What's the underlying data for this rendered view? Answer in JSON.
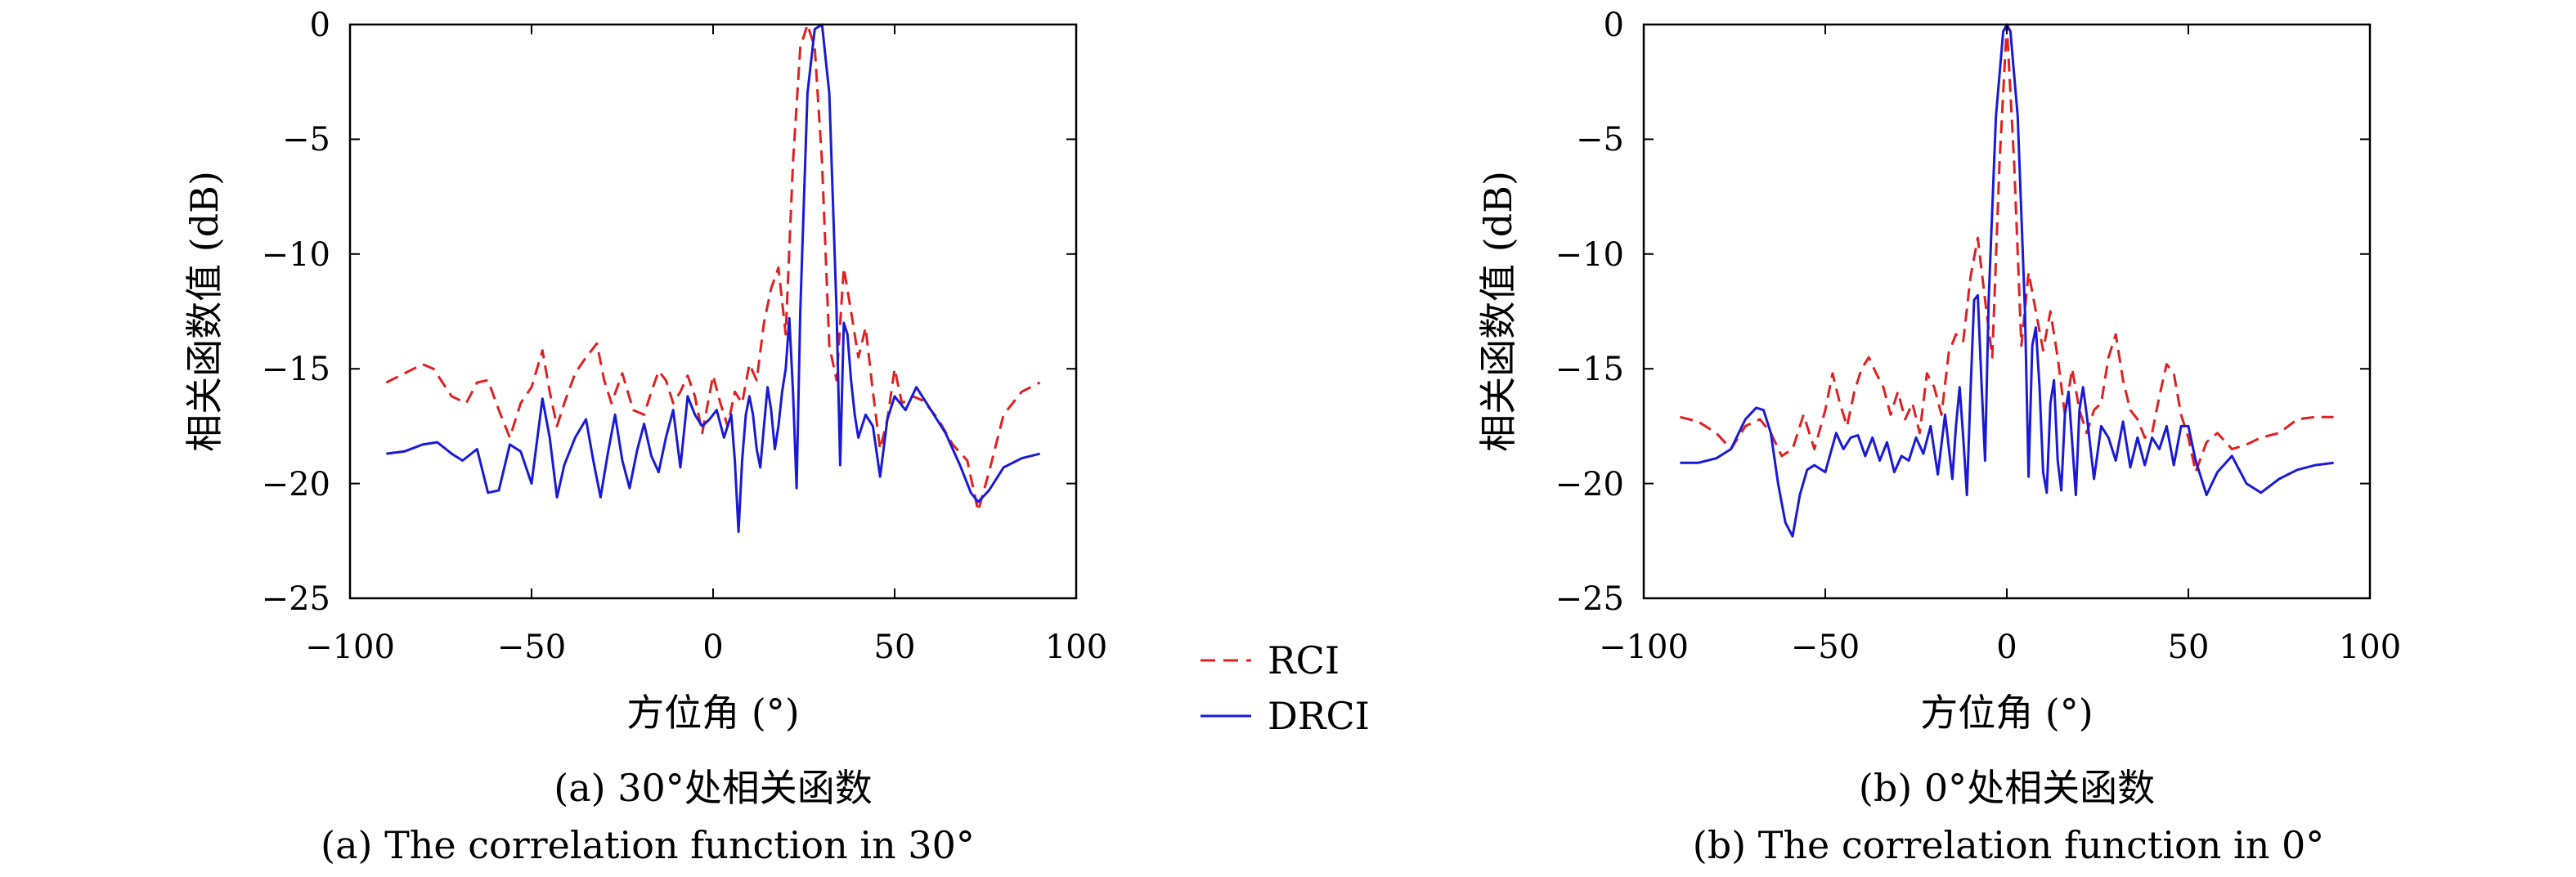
{
  "legend": {
    "items": [
      {
        "name": "RCI",
        "color": "#e02020",
        "dash": "dashed"
      },
      {
        "name": "DRCI",
        "color": "#1a1ad6",
        "dash": "solid"
      }
    ]
  },
  "chart_data": [
    {
      "type": "line",
      "xlabel": "方位角 (°)",
      "ylabel": "相关函数值 (dB)",
      "xlim": [
        -100,
        100
      ],
      "ylim": [
        -25,
        0
      ],
      "xticks": [
        -100,
        -50,
        0,
        50,
        100
      ],
      "yticks": [
        0,
        -5,
        -10,
        -15,
        -20,
        -25
      ],
      "xtick_labels": [
        "−100",
        "−50",
        "0",
        "50",
        "100"
      ],
      "ytick_labels": [
        "0",
        "−5",
        "−10",
        "−15",
        "−20",
        "−25"
      ],
      "caption_cn": "(a) 30°处相关函数",
      "caption_en": "(a) The correlation function in 30°",
      "grid": false,
      "series": [
        {
          "name": "RCI",
          "color": "#e02020",
          "dash": "dashed",
          "x": [
            -90,
            -85,
            -80,
            -77,
            -72,
            -68,
            -65,
            -62,
            -59,
            -56,
            -53,
            -50,
            -47,
            -45,
            -43,
            -41,
            -38,
            -35,
            -32,
            -30,
            -28,
            -25,
            -22,
            -19,
            -17,
            -15,
            -13,
            -11,
            -9,
            -7,
            -5,
            -3,
            0,
            2,
            4,
            6,
            8,
            10,
            12,
            14,
            16,
            18,
            20,
            22,
            24,
            26,
            28,
            30,
            32,
            34,
            36,
            38,
            40,
            42,
            44,
            46,
            48,
            50,
            52,
            55,
            58,
            62,
            66,
            70,
            73,
            76,
            80,
            85,
            90
          ],
          "y": [
            -15.6,
            -15.2,
            -14.8,
            -15.0,
            -16.2,
            -16.5,
            -15.6,
            -15.5,
            -16.8,
            -18.0,
            -16.5,
            -15.8,
            -14.2,
            -16.0,
            -17.5,
            -16.5,
            -15.2,
            -14.5,
            -13.9,
            -15.5,
            -16.5,
            -15.2,
            -16.8,
            -17.0,
            -16.0,
            -15.1,
            -15.5,
            -16.5,
            -16.0,
            -15.3,
            -16.2,
            -17.8,
            -15.3,
            -16.5,
            -17.5,
            -16.0,
            -16.5,
            -14.8,
            -15.5,
            -13.0,
            -11.5,
            -10.6,
            -13.5,
            -6,
            -1,
            0,
            -1,
            -6,
            -14.0,
            -15.5,
            -10.6,
            -12.5,
            -14.5,
            -13.2,
            -16.0,
            -18.5,
            -17.2,
            -15.0,
            -16.5,
            -16.2,
            -16.4,
            -17.2,
            -18.3,
            -19.0,
            -21.2,
            -19.5,
            -17.0,
            -16.0,
            -15.6
          ]
        },
        {
          "name": "DRCI",
          "color": "#1a1ad6",
          "dash": "solid",
          "x": [
            -90,
            -85,
            -80,
            -76,
            -72,
            -69,
            -65,
            -62,
            -59,
            -56,
            -53,
            -50,
            -47,
            -45,
            -43,
            -41,
            -38,
            -35,
            -33,
            -31,
            -29,
            -27,
            -25,
            -23,
            -21,
            -19,
            -17,
            -15,
            -13,
            -11,
            -9,
            -7,
            -5,
            -3,
            -1,
            1,
            3,
            5,
            6,
            7,
            8,
            9,
            10,
            11,
            12,
            13,
            14,
            15,
            16,
            17,
            18,
            19,
            20,
            21,
            22,
            23,
            24,
            26,
            28,
            30,
            32,
            34,
            35,
            36,
            37,
            38,
            39,
            40,
            42,
            44,
            46,
            48,
            50,
            53,
            56,
            60,
            64,
            68,
            71,
            73,
            76,
            80,
            85,
            90
          ],
          "y": [
            -18.7,
            -18.6,
            -18.3,
            -18.2,
            -18.7,
            -19.0,
            -18.5,
            -20.4,
            -20.3,
            -18.3,
            -18.6,
            -20.0,
            -16.3,
            -18.0,
            -20.6,
            -19.2,
            -18.0,
            -17.2,
            -19.0,
            -20.6,
            -18.7,
            -17.0,
            -19.0,
            -20.2,
            -18.6,
            -17.4,
            -18.8,
            -19.5,
            -18.0,
            -16.8,
            -19.3,
            -16.2,
            -17.0,
            -17.5,
            -17.2,
            -16.8,
            -18.0,
            -17.0,
            -19.0,
            -22.1,
            -19.0,
            -17.0,
            -16.2,
            -17.0,
            -18.5,
            -19.3,
            -17.5,
            -15.8,
            -16.8,
            -18.5,
            -17.5,
            -16.0,
            -15.0,
            -12.8,
            -16.0,
            -20.2,
            -12.5,
            -3,
            -0.2,
            0,
            -3,
            -12.5,
            -19.2,
            -13.0,
            -13.5,
            -15.5,
            -17.0,
            -18.0,
            -17.0,
            -17.5,
            -19.7,
            -17.2,
            -16.2,
            -16.8,
            -15.8,
            -16.8,
            -17.8,
            -19.2,
            -20.4,
            -20.8,
            -20.3,
            -19.3,
            -18.9,
            -18.7
          ]
        }
      ]
    },
    {
      "type": "line",
      "xlabel": "方位角 (°)",
      "ylabel": "相关函数值 (dB)",
      "xlim": [
        -100,
        100
      ],
      "ylim": [
        -25,
        0
      ],
      "xticks": [
        -100,
        -50,
        0,
        50,
        100
      ],
      "yticks": [
        0,
        -5,
        -10,
        -15,
        -20,
        -25
      ],
      "xtick_labels": [
        "−100",
        "−50",
        "0",
        "50",
        "100"
      ],
      "ytick_labels": [
        "0",
        "−5",
        "−10",
        "−15",
        "−20",
        "−25"
      ],
      "caption_cn": "(b) 0°处相关函数",
      "caption_en": "(b) The correlation function in 0°",
      "grid": false,
      "series": [
        {
          "name": "RCI",
          "color": "#e02020",
          "dash": "dashed",
          "x": [
            -90,
            -85,
            -80,
            -76,
            -72,
            -68,
            -65,
            -62,
            -59,
            -56,
            -53,
            -50,
            -48,
            -46,
            -44,
            -42,
            -40,
            -38,
            -36,
            -34,
            -32,
            -30,
            -28,
            -26,
            -24,
            -22,
            -20,
            -18,
            -16,
            -14,
            -12,
            -10,
            -8,
            -6,
            -4,
            -2,
            0,
            2,
            4,
            6,
            8,
            10,
            12,
            14,
            16,
            18,
            20,
            22,
            24,
            26,
            28,
            30,
            32,
            34,
            36,
            38,
            40,
            42,
            44,
            46,
            48,
            50,
            52,
            55,
            58,
            62,
            66,
            70,
            75,
            80,
            85,
            90
          ],
          "y": [
            -17.1,
            -17.3,
            -17.8,
            -18.5,
            -17.5,
            -17.2,
            -17.8,
            -18.8,
            -18.5,
            -17.0,
            -18.5,
            -16.8,
            -15.2,
            -16.5,
            -17.5,
            -16.0,
            -15.0,
            -14.5,
            -15.2,
            -15.8,
            -17.0,
            -16.0,
            -17.2,
            -16.5,
            -17.8,
            -15.2,
            -15.8,
            -17.0,
            -14.3,
            -13.5,
            -13.8,
            -11.0,
            -9.3,
            -12.0,
            -14.5,
            -6.0,
            0,
            -6.0,
            -14.0,
            -10.8,
            -12.5,
            -14.2,
            -12.5,
            -14.5,
            -17.0,
            -15.0,
            -16.8,
            -17.8,
            -16.8,
            -16.5,
            -14.5,
            -13.5,
            -15.5,
            -16.8,
            -17.2,
            -18.0,
            -17.8,
            -16.2,
            -14.8,
            -15.2,
            -17.0,
            -18.0,
            -19.5,
            -18.2,
            -17.8,
            -18.5,
            -18.3,
            -18.0,
            -17.8,
            -17.2,
            -17.1,
            -17.1
          ]
        },
        {
          "name": "DRCI",
          "color": "#1a1ad6",
          "dash": "solid",
          "x": [
            -90,
            -85,
            -80,
            -76,
            -72,
            -69,
            -67,
            -65,
            -63,
            -61,
            -59,
            -57,
            -55,
            -53,
            -50,
            -47,
            -45,
            -43,
            -41,
            -39,
            -37,
            -35,
            -33,
            -31,
            -29,
            -27,
            -25,
            -23,
            -21,
            -19,
            -17,
            -15,
            -14,
            -13,
            -12,
            -11,
            -10,
            -9,
            -8,
            -7,
            -6,
            -5,
            -3,
            -1,
            0,
            1,
            3,
            5,
            6,
            7,
            8,
            9,
            10,
            11,
            12,
            13,
            14,
            15,
            16,
            17,
            18,
            19,
            20,
            21,
            22,
            24,
            26,
            28,
            30,
            32,
            34,
            36,
            38,
            40,
            42,
            44,
            46,
            48,
            50,
            52,
            55,
            58,
            62,
            66,
            70,
            75,
            80,
            85,
            90
          ],
          "y": [
            -19.1,
            -19.1,
            -18.9,
            -18.5,
            -17.2,
            -16.7,
            -16.8,
            -17.8,
            -20.0,
            -21.7,
            -22.3,
            -20.5,
            -19.4,
            -19.2,
            -19.5,
            -17.8,
            -18.5,
            -18.0,
            -17.9,
            -18.8,
            -18.0,
            -19.0,
            -18.2,
            -19.5,
            -18.8,
            -19.0,
            -18.0,
            -18.7,
            -17.5,
            -19.6,
            -17.0,
            -19.8,
            -17.5,
            -15.8,
            -18.0,
            -20.5,
            -16.0,
            -12.0,
            -11.8,
            -15.5,
            -19.0,
            -12.0,
            -4,
            -0.3,
            0,
            -0.3,
            -4,
            -12.5,
            -19.7,
            -14.0,
            -13.2,
            -15.8,
            -19.5,
            -20.4,
            -16.5,
            -15.5,
            -19.0,
            -20.3,
            -17.0,
            -16.0,
            -18.2,
            -20.5,
            -16.8,
            -15.8,
            -17.0,
            -19.8,
            -17.5,
            -18.0,
            -19.0,
            -17.3,
            -19.3,
            -18.0,
            -19.2,
            -18.0,
            -18.5,
            -17.5,
            -19.2,
            -17.5,
            -17.5,
            -19.0,
            -20.5,
            -19.5,
            -18.8,
            -20.0,
            -20.4,
            -19.8,
            -19.4,
            -19.2,
            -19.1
          ]
        }
      ]
    }
  ]
}
